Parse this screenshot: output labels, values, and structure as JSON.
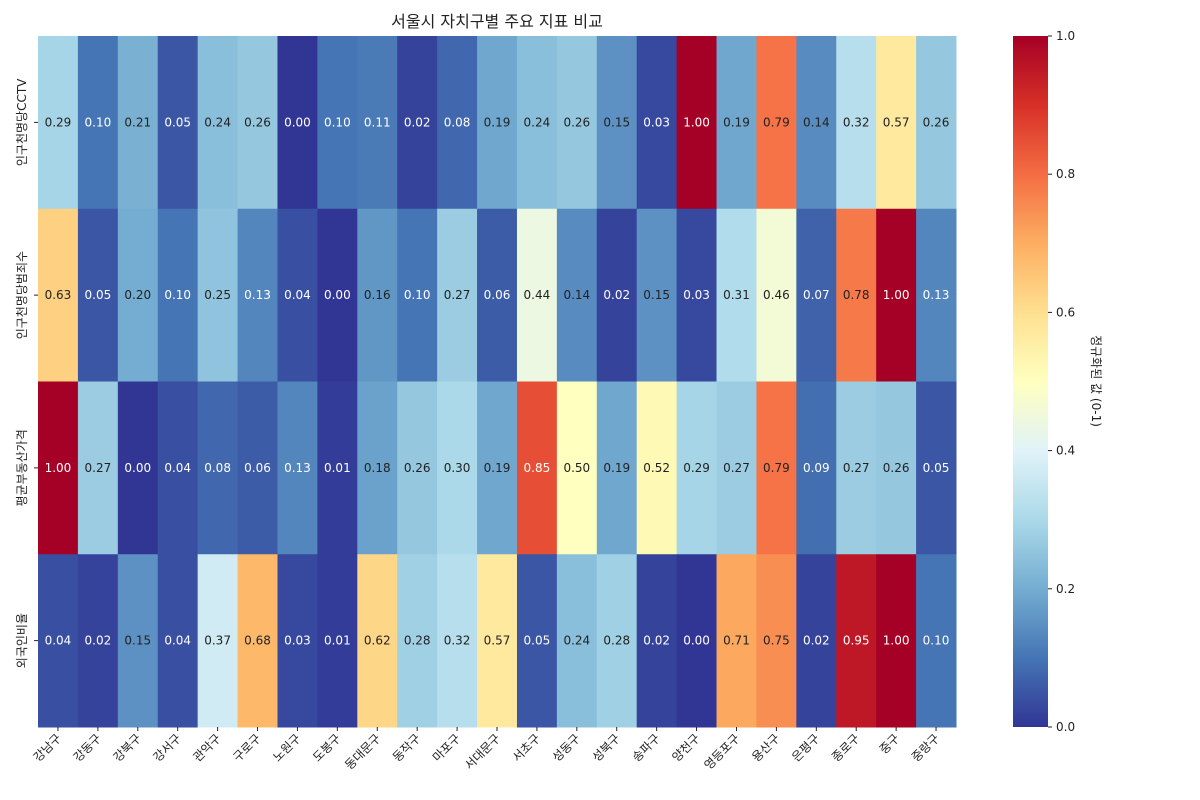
{
  "chart_data": {
    "type": "heatmap",
    "title": "서울시 자치구별 주요 지표 비교",
    "columns": [
      "강남구",
      "강동구",
      "강북구",
      "강서구",
      "관악구",
      "구로구",
      "노원구",
      "도봉구",
      "동대문구",
      "동작구",
      "마포구",
      "서대문구",
      "서초구",
      "성동구",
      "성북구",
      "송파구",
      "양천구",
      "영등포구",
      "용산구",
      "은평구",
      "종로구",
      "중구",
      "중랑구"
    ],
    "rows": [
      "인구천명당CCTV",
      "인구천명당범죄수",
      "평균부동산가격",
      "외국인비율"
    ],
    "values": [
      [
        0.29,
        0.1,
        0.21,
        0.05,
        0.24,
        0.26,
        0.0,
        0.1,
        0.11,
        0.02,
        0.08,
        0.19,
        0.24,
        0.26,
        0.15,
        0.03,
        1.0,
        0.19,
        0.79,
        0.14,
        0.32,
        0.57,
        0.26
      ],
      [
        0.63,
        0.05,
        0.2,
        0.1,
        0.25,
        0.13,
        0.04,
        0.0,
        0.16,
        0.1,
        0.27,
        0.06,
        0.44,
        0.14,
        0.02,
        0.15,
        0.03,
        0.31,
        0.46,
        0.07,
        0.78,
        1.0,
        0.13
      ],
      [
        1.0,
        0.27,
        0.0,
        0.04,
        0.08,
        0.06,
        0.13,
        0.01,
        0.18,
        0.26,
        0.3,
        0.19,
        0.85,
        0.5,
        0.19,
        0.52,
        0.29,
        0.27,
        0.79,
        0.09,
        0.27,
        0.26,
        0.05
      ],
      [
        0.04,
        0.02,
        0.15,
        0.04,
        0.37,
        0.68,
        0.03,
        0.01,
        0.62,
        0.28,
        0.32,
        0.57,
        0.05,
        0.24,
        0.28,
        0.02,
        0.0,
        0.71,
        0.75,
        0.02,
        0.95,
        1.0,
        0.1
      ]
    ],
    "colormap": "RdYlBu_r",
    "vmin": 0,
    "vmax": 1,
    "colorbar": {
      "label": "정규화된 값 (0-1)",
      "ticks": [
        "0.0",
        "0.2",
        "0.4",
        "0.6",
        "0.8",
        "1.0"
      ]
    }
  }
}
